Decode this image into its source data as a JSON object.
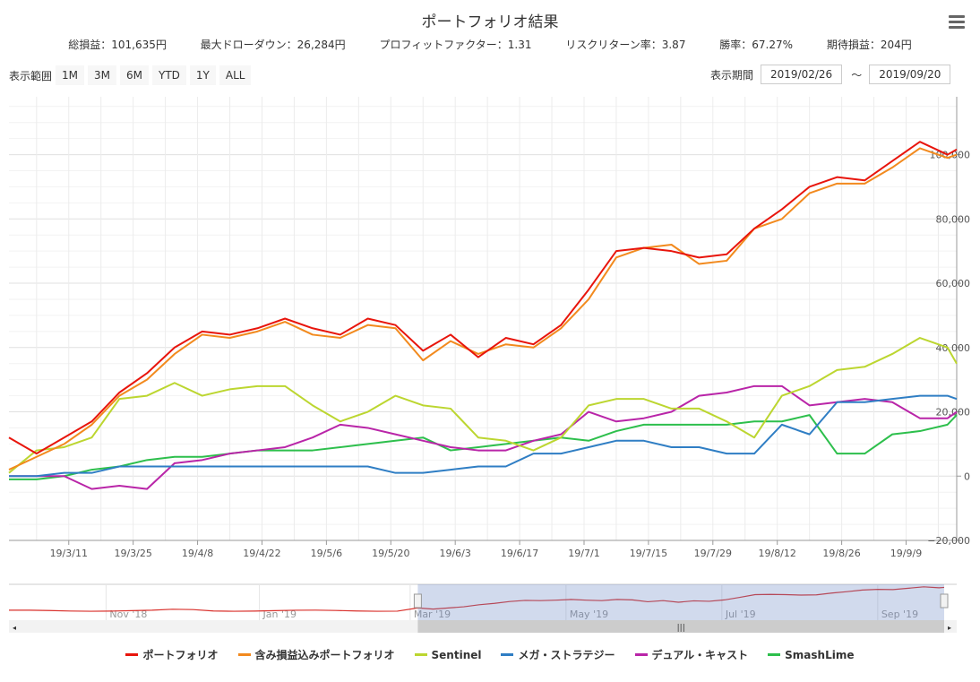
{
  "header": {
    "title": "ポートフォリオ結果",
    "stats": [
      "総損益：101,635円",
      "最大ドローダウン：26,284円",
      "プロフィットファクター：1.31",
      "リスクリターン率：3.87",
      "勝率：67.27%",
      "期待損益：204円"
    ]
  },
  "range_selector": {
    "label": "表示範囲",
    "buttons": [
      "1M",
      "3M",
      "6M",
      "YTD",
      "1Y",
      "ALL"
    ]
  },
  "period": {
    "label": "表示期間",
    "from": "2019/02/26",
    "sep": "～",
    "to": "2019/09/20"
  },
  "chart_data": {
    "type": "line",
    "title": "ポートフォリオ結果",
    "xlabel": "",
    "ylabel": "",
    "x_unit": "days since 2019/02/26",
    "x": [
      0,
      6,
      12,
      18,
      24,
      30,
      36,
      42,
      48,
      54,
      60,
      66,
      72,
      78,
      84,
      90,
      96,
      102,
      108,
      114,
      120,
      126,
      132,
      138,
      144,
      150,
      156,
      162,
      168,
      174,
      180,
      186,
      192,
      198,
      204,
      206
    ],
    "xlim": [
      0,
      206
    ],
    "ylim": [
      -20000,
      118000
    ],
    "yticks": [
      -20000,
      0,
      20000,
      40000,
      60000,
      80000,
      100000
    ],
    "ytick_labels": [
      "−20,000",
      "0",
      "20,000",
      "40,000",
      "60,000",
      "80,000",
      "100,000"
    ],
    "xticks": [
      13,
      27,
      41,
      55,
      69,
      83,
      97,
      111,
      125,
      139,
      153,
      167,
      181,
      195
    ],
    "xtick_labels": [
      "19/3/11",
      "19/3/25",
      "19/4/8",
      "19/4/22",
      "19/5/6",
      "19/5/20",
      "19/6/3",
      "19/6/17",
      "19/7/1",
      "19/7/15",
      "19/7/29",
      "19/8/12",
      "19/8/26",
      "19/9/9"
    ],
    "series": [
      {
        "name": "ポートフォリオ",
        "color": "#e8150c",
        "values": [
          12000,
          7000,
          12000,
          17000,
          26000,
          32000,
          40000,
          45000,
          44000,
          46000,
          49000,
          46000,
          44000,
          49000,
          47000,
          39000,
          44000,
          37000,
          43000,
          41000,
          47000,
          58000,
          70000,
          71000,
          70000,
          68000,
          69000,
          77000,
          83000,
          90000,
          93000,
          92000,
          98000,
          104000,
          100000,
          101635
        ]
      },
      {
        "name": "含み損益込みポートフォリオ",
        "color": "#f28a1e",
        "values": [
          2000,
          6000,
          10000,
          16000,
          25000,
          30000,
          38000,
          44000,
          43000,
          45000,
          48000,
          44000,
          43000,
          47000,
          46000,
          36000,
          42000,
          38000,
          41000,
          40000,
          46000,
          55000,
          68000,
          71000,
          72000,
          66000,
          67000,
          77000,
          80000,
          88000,
          91000,
          91000,
          96000,
          102000,
          99000,
          100000
        ]
      },
      {
        "name": "Sentinel",
        "color": "#bcd630",
        "values": [
          1000,
          8000,
          9000,
          12000,
          24000,
          25000,
          29000,
          25000,
          27000,
          28000,
          28000,
          22000,
          17000,
          20000,
          25000,
          22000,
          21000,
          12000,
          11000,
          8000,
          12000,
          22000,
          24000,
          24000,
          21000,
          21000,
          17000,
          12000,
          25000,
          28000,
          33000,
          34000,
          38000,
          43000,
          40000,
          35000
        ]
      },
      {
        "name": "メガ・ストラテジー",
        "color": "#2f7ec4",
        "values": [
          0,
          0,
          1000,
          1000,
          3000,
          3000,
          3000,
          3000,
          3000,
          3000,
          3000,
          3000,
          3000,
          3000,
          1000,
          1000,
          2000,
          3000,
          3000,
          7000,
          7000,
          9000,
          11000,
          11000,
          9000,
          9000,
          7000,
          7000,
          16000,
          13000,
          23000,
          23000,
          24000,
          25000,
          25000,
          24000
        ]
      },
      {
        "name": "デュアル・キャスト",
        "color": "#b925a8",
        "values": [
          0,
          0,
          0,
          -4000,
          -3000,
          -4000,
          4000,
          5000,
          7000,
          8000,
          9000,
          12000,
          16000,
          15000,
          13000,
          11000,
          9000,
          8000,
          8000,
          11000,
          13000,
          20000,
          17000,
          18000,
          20000,
          25000,
          26000,
          28000,
          28000,
          22000,
          23000,
          24000,
          23000,
          18000,
          18000,
          20000
        ]
      },
      {
        "name": "SmashLime",
        "color": "#2dbf4c",
        "values": [
          -1000,
          -1000,
          0,
          2000,
          3000,
          5000,
          6000,
          6000,
          7000,
          8000,
          8000,
          8000,
          9000,
          10000,
          11000,
          12000,
          8000,
          9000,
          10000,
          11000,
          12000,
          11000,
          14000,
          16000,
          16000,
          16000,
          16000,
          17000,
          17000,
          19000,
          7000,
          7000,
          13000,
          14000,
          16000,
          19000
        ]
      }
    ],
    "navigator": {
      "labels": [
        "Nov '18",
        "Jan '19",
        "Mar '19",
        "May '19",
        "Jul '19",
        "Sep '19"
      ],
      "selected_range": [
        "2019/02/26",
        "2019/09/20"
      ]
    },
    "legend_position": "bottom-center",
    "grid": true
  }
}
